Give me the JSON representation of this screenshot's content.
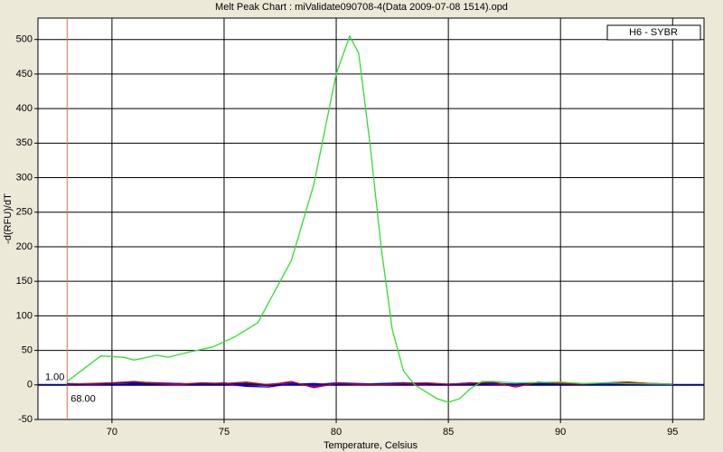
{
  "chart_data": {
    "type": "line",
    "title": "Melt Peak Chart : miValidate090708-4(Data 2009-07-08 1514).opd",
    "x_label": "Temperature, Celsius",
    "y_label": "-d(RFU)/dT",
    "xlim": [
      66.7,
      96.4
    ],
    "ylim": [
      -50,
      531
    ],
    "xticks": [
      70,
      75,
      80,
      85,
      90,
      95
    ],
    "yticks": [
      -50,
      0,
      50,
      100,
      150,
      200,
      250,
      300,
      350,
      400,
      450,
      500
    ],
    "grid": true,
    "legend": "top-right",
    "cursor": {
      "x": {
        "value": 68,
        "label": "68.00"
      },
      "y_label": "1.00",
      "color": "#e07040"
    },
    "series": [
      {
        "name": "H6 - SYBR",
        "color": "#33dd33",
        "x": [
          68,
          69.5,
          70.5,
          71,
          72,
          72.5,
          73.5,
          74.5,
          75.5,
          76.5,
          77,
          78,
          79,
          80,
          80.6,
          81,
          81.5,
          82,
          82.5,
          83,
          83.5,
          84,
          84.5,
          85,
          85.5,
          86,
          86.5,
          87,
          88,
          90,
          91,
          92,
          93,
          95
        ],
        "values": [
          5,
          42,
          40,
          36,
          43,
          40,
          48,
          55,
          70,
          90,
          120,
          180,
          290,
          450,
          505,
          480,
          350,
          200,
          80,
          20,
          0,
          -10,
          -20,
          -25,
          -20,
          -5,
          5,
          5,
          3,
          4,
          2,
          3,
          2,
          1
        ]
      },
      {
        "color": "#c00000",
        "x": [
          68,
          69,
          70,
          71,
          72,
          73,
          74,
          75,
          76,
          77,
          78,
          79,
          80,
          81,
          82,
          83,
          84,
          85,
          86,
          87,
          88,
          89,
          90,
          91,
          92,
          93,
          94,
          95
        ],
        "values": [
          1,
          2,
          3,
          5,
          2,
          1,
          3,
          2,
          4,
          0,
          5,
          -4,
          2,
          1,
          0,
          2,
          3,
          1,
          2,
          4,
          -3,
          4,
          2,
          1,
          3,
          4,
          2,
          1
        ]
      },
      {
        "color": "#0000ff",
        "x": [
          68,
          69,
          70,
          71,
          72,
          73,
          74,
          75,
          76,
          77,
          78,
          79,
          80,
          81,
          82,
          83,
          84,
          85,
          86,
          87,
          88,
          89,
          90,
          91,
          92,
          93,
          94,
          95
        ],
        "values": [
          2,
          1,
          2,
          4,
          3,
          2,
          1,
          3,
          -2,
          -3,
          2,
          0,
          3,
          2,
          1,
          3,
          2,
          1,
          3,
          2,
          1,
          3,
          2,
          2,
          1,
          3,
          2,
          1
        ]
      },
      {
        "color": "#000080",
        "x": [
          68,
          69,
          70,
          71,
          72,
          73,
          74,
          75,
          76,
          77,
          78,
          79,
          80,
          81,
          82,
          83,
          84,
          85,
          86,
          87,
          88,
          89,
          90,
          91,
          92,
          93,
          94,
          95
        ],
        "values": [
          0,
          1,
          3,
          2,
          1,
          2,
          0,
          1,
          2,
          -1,
          1,
          2,
          0,
          1,
          2,
          3,
          1,
          0,
          1,
          2,
          1,
          2,
          1,
          0,
          1,
          2,
          1,
          0
        ]
      },
      {
        "color": "#800080",
        "x": [
          68,
          69,
          70,
          71,
          72,
          73,
          74,
          75,
          76,
          77,
          78,
          79,
          80,
          81,
          82,
          83,
          84,
          85,
          86,
          87,
          88,
          89,
          90,
          91,
          92,
          93,
          94,
          95
        ],
        "values": [
          1,
          0,
          2,
          3,
          1,
          0,
          2,
          1,
          -2,
          1,
          3,
          -2,
          1,
          0,
          1,
          2,
          0,
          1,
          2,
          1,
          -1,
          3,
          1,
          0,
          2,
          3,
          1,
          0
        ]
      }
    ]
  }
}
